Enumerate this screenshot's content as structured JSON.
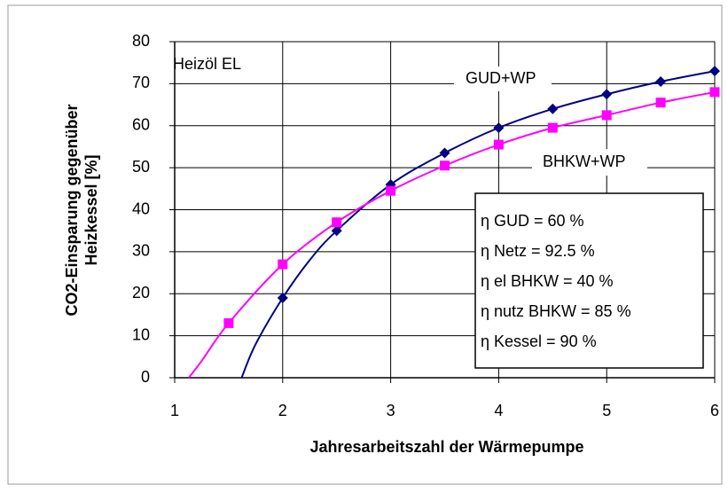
{
  "chart_data": {
    "type": "line",
    "ylabel": [
      "CO2-Einsparung gegenüber",
      "Heizkessel [%]"
    ],
    "xlabel": "Jahresarbeitszahl der Wärmepumpe",
    "annotations": [
      "Heizöl EL"
    ],
    "note_box": [
      "η GUD = 60 %",
      "η Netz = 92.5 %",
      "η el BHKW = 40 %",
      "η nutz BHKW = 85 %",
      "η Kessel = 90 %"
    ],
    "xlim": [
      1,
      6
    ],
    "xticks": [
      1,
      2,
      3,
      4,
      5,
      6
    ],
    "ylim": [
      0,
      80
    ],
    "yticks": [
      0,
      10,
      20,
      30,
      40,
      50,
      60,
      70,
      80
    ],
    "grid": true,
    "series": [
      {
        "name": "GUD+WP",
        "color": "#000080",
        "marker_shape": "diamond",
        "x": [
          1.62,
          1.75,
          2,
          2.25,
          2.5,
          3,
          3.5,
          4,
          4.5,
          5,
          5.5,
          6
        ],
        "values": [
          0,
          8,
          19,
          28,
          35,
          46,
          53.5,
          59.5,
          64,
          67.5,
          70.5,
          73
        ],
        "markers": [
          false,
          false,
          true,
          false,
          true,
          true,
          true,
          true,
          true,
          true,
          true,
          true
        ]
      },
      {
        "name": "BHKW+WP",
        "color": "#ff00ff",
        "marker_shape": "square",
        "x": [
          1.13,
          1.25,
          1.5,
          2,
          2.5,
          3,
          3.5,
          4,
          4.5,
          5,
          5.5,
          6
        ],
        "values": [
          0,
          4,
          13,
          27,
          37,
          44.5,
          50.5,
          55.5,
          59.5,
          62.5,
          65.5,
          68
        ],
        "markers": [
          false,
          false,
          true,
          true,
          true,
          true,
          true,
          true,
          true,
          true,
          true,
          true
        ]
      }
    ]
  }
}
